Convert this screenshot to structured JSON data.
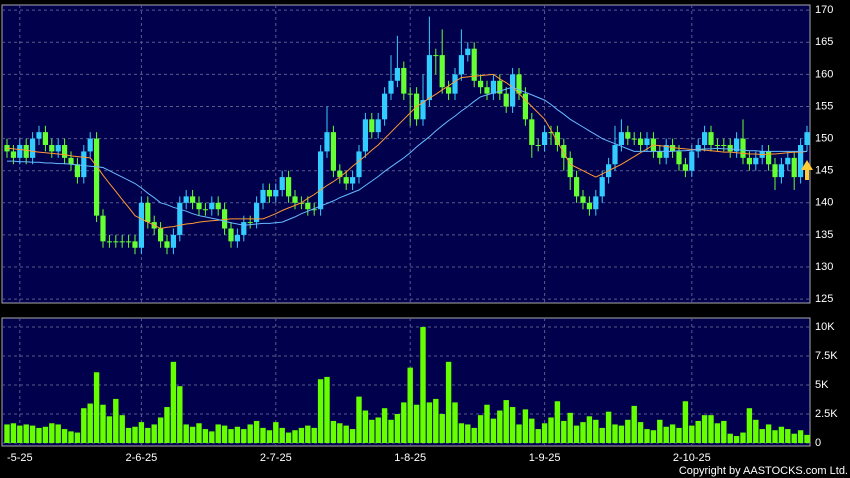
{
  "chart_data": {
    "type": "candlestick",
    "categories": [
      null,
      null,
      "-5-25",
      null,
      null,
      null,
      null,
      null,
      null,
      null,
      null,
      null,
      null,
      null,
      null,
      null,
      null,
      null,
      null,
      null,
      null,
      "2-6-25",
      null,
      null,
      null,
      null,
      null,
      null,
      null,
      null,
      null,
      null,
      null,
      null,
      null,
      null,
      null,
      null,
      null,
      null,
      null,
      null,
      "2-7-25",
      null,
      null,
      null,
      null,
      null,
      null,
      null,
      null,
      null,
      null,
      null,
      null,
      null,
      null,
      null,
      null,
      null,
      null,
      null,
      null,
      "1-8-25",
      null,
      null,
      null,
      null,
      null,
      null,
      null,
      null,
      null,
      null,
      null,
      null,
      null,
      null,
      null,
      null,
      null,
      null,
      null,
      null,
      "1-9-25",
      null,
      null,
      null,
      null,
      null,
      null,
      null,
      null,
      null,
      null,
      null,
      null,
      null,
      null,
      null,
      null,
      null,
      null,
      null,
      null,
      null,
      null,
      "2-10-25",
      null,
      null,
      null,
      null,
      null,
      null,
      null,
      null,
      null,
      null,
      null,
      null,
      null,
      null,
      null,
      null,
      null,
      null
    ],
    "open": [
      149,
      148,
      147,
      149,
      147,
      150,
      151,
      149,
      148,
      149,
      147,
      146,
      144,
      148,
      150,
      138,
      134,
      134,
      134,
      134,
      134,
      133,
      140,
      137,
      136,
      134,
      133,
      135,
      140,
      141,
      140,
      139,
      139,
      140,
      139,
      136,
      134,
      135,
      137,
      137,
      140,
      142,
      141,
      142,
      144,
      141,
      140,
      140,
      139,
      139,
      148,
      151,
      145,
      144,
      143,
      144,
      148,
      153,
      151,
      153,
      157,
      159,
      161,
      157,
      157,
      153,
      156,
      163,
      163,
      158,
      157,
      160,
      163,
      164,
      159,
      158,
      157,
      159,
      157,
      155,
      160,
      157,
      153,
      149,
      149,
      151,
      151,
      149,
      147,
      144,
      141,
      140,
      139,
      141,
      144,
      146,
      149,
      151,
      150,
      150,
      149,
      150,
      148,
      147,
      149,
      148,
      146,
      145,
      148,
      149,
      151,
      149,
      149,
      149,
      148,
      150,
      147,
      146,
      147,
      148,
      146,
      144,
      146,
      147,
      144,
      149
    ],
    "high": [
      150,
      149,
      150,
      150,
      151,
      152,
      152,
      150,
      150,
      150,
      148,
      147,
      149,
      151,
      151,
      139,
      135,
      135,
      135,
      135,
      135,
      141,
      141,
      138,
      137,
      135,
      136,
      141,
      142,
      142,
      141,
      140,
      141,
      141,
      140,
      137,
      136,
      138,
      138,
      141,
      143,
      143,
      143,
      145,
      145,
      142,
      141,
      141,
      140,
      149,
      155,
      152,
      146,
      145,
      145,
      149,
      154,
      154,
      154,
      158,
      163,
      166,
      162,
      158,
      158,
      160,
      169,
      164,
      167,
      159,
      161,
      167,
      165,
      165,
      160,
      159,
      160,
      160,
      158,
      161,
      161,
      158,
      154,
      150,
      152,
      152,
      152,
      150,
      148,
      145,
      142,
      141,
      142,
      145,
      147,
      152,
      153,
      152,
      151,
      151,
      151,
      151,
      149,
      150,
      150,
      149,
      147,
      149,
      150,
      152,
      152,
      150,
      150,
      150,
      151,
      153,
      148,
      148,
      149,
      149,
      147,
      147,
      148,
      148,
      150,
      152
    ],
    "low": [
      147,
      146,
      146,
      146,
      146,
      149,
      148,
      147,
      147,
      146,
      145,
      143,
      143,
      147,
      137,
      133,
      133,
      133,
      133,
      133,
      132,
      132,
      136,
      135,
      133,
      132,
      132,
      134,
      139,
      139,
      138,
      138,
      138,
      138,
      135,
      133,
      133,
      134,
      136,
      136,
      139,
      140,
      140,
      141,
      140,
      139,
      139,
      138,
      138,
      138,
      147,
      144,
      143,
      142,
      142,
      143,
      147,
      150,
      150,
      152,
      156,
      158,
      156,
      152,
      152,
      152,
      155,
      160,
      157,
      156,
      156,
      159,
      162,
      158,
      157,
      156,
      156,
      156,
      154,
      154,
      156,
      152,
      147,
      148,
      148,
      149,
      148,
      145,
      142,
      140,
      139,
      138,
      138,
      140,
      143,
      145,
      148,
      149,
      149,
      148,
      148,
      147,
      146,
      146,
      147,
      145,
      144,
      144,
      147,
      148,
      148,
      148,
      148,
      147,
      147,
      146,
      145,
      145,
      146,
      145,
      142,
      143,
      145,
      142,
      143,
      148
    ],
    "close": [
      148,
      147,
      149,
      147,
      150,
      151,
      149,
      148,
      149,
      147,
      146,
      144,
      148,
      150,
      138,
      134,
      134,
      134,
      134,
      134,
      133,
      140,
      137,
      136,
      134,
      133,
      135,
      140,
      141,
      140,
      139,
      139,
      140,
      139,
      136,
      134,
      135,
      137,
      137,
      140,
      142,
      141,
      142,
      144,
      141,
      140,
      140,
      139,
      139,
      148,
      151,
      145,
      144,
      143,
      144,
      148,
      153,
      151,
      153,
      157,
      159,
      161,
      157,
      157,
      153,
      156,
      163,
      163,
      158,
      157,
      160,
      163,
      164,
      159,
      158,
      157,
      159,
      157,
      155,
      160,
      157,
      153,
      149,
      149,
      151,
      151,
      149,
      147,
      144,
      141,
      140,
      139,
      141,
      144,
      146,
      149,
      151,
      150,
      150,
      149,
      150,
      148,
      147,
      149,
      148,
      146,
      145,
      148,
      149,
      151,
      149,
      149,
      149,
      148,
      150,
      147,
      146,
      147,
      148,
      146,
      144,
      146,
      147,
      144,
      149,
      151
    ],
    "up_color": "#33ccff",
    "down_color": "#66ff33",
    "moving_averages": [
      {
        "color": "#ff9933",
        "values": [
          148.5,
          148.4,
          148.3,
          148.2,
          148.0,
          147.9,
          147.8,
          147.7,
          147.6,
          147.5,
          147.3,
          147.2,
          147.1,
          147.0,
          145.7,
          144.3,
          143.0,
          141.8,
          140.5,
          139.3,
          138.0,
          137.5,
          137.0,
          136.5,
          136.0,
          136.2,
          136.3,
          136.5,
          136.7,
          136.8,
          137.0,
          137.1,
          137.2,
          137.3,
          137.4,
          137.5,
          137.5,
          137.5,
          137.5,
          137.5,
          137.5,
          137.9,
          138.3,
          138.8,
          139.2,
          139.6,
          140.0,
          140.7,
          141.3,
          142.0,
          142.7,
          143.3,
          144.0,
          144.8,
          145.7,
          146.5,
          147.3,
          148.2,
          149.0,
          150.0,
          151.0,
          152.0,
          153.0,
          154.0,
          155.0,
          155.6,
          156.3,
          156.9,
          157.6,
          158.2,
          158.9,
          159.5,
          159.6,
          159.7,
          159.8,
          159.9,
          160.0,
          159.3,
          158.7,
          158.0,
          157.0,
          156.0,
          155.0,
          154.0,
          153.0,
          151.3,
          149.5,
          147.8,
          146.0,
          145.5,
          145.0,
          144.5,
          144.0,
          144.5,
          145.0,
          145.5,
          146.0,
          146.6,
          147.2,
          147.8,
          148.4,
          149.0,
          148.9,
          148.8,
          148.6,
          148.5,
          148.4,
          148.3,
          148.3,
          148.2,
          148.1,
          148.0,
          147.9,
          147.9,
          147.8,
          147.7,
          147.6,
          147.6,
          147.5,
          147.6,
          147.6,
          147.7,
          147.8,
          147.9,
          147.9,
          148.0
        ]
      },
      {
        "color": "#66bbff",
        "values": [
          146.5,
          146.5,
          146.4,
          146.4,
          146.3,
          146.3,
          146.2,
          146.2,
          146.1,
          146.1,
          146.0,
          145.9,
          145.8,
          145.7,
          145.6,
          145.5,
          145.0,
          144.5,
          144.0,
          143.5,
          143.0,
          142.3,
          141.5,
          140.8,
          140.0,
          139.7,
          139.3,
          139.0,
          138.7,
          138.3,
          138.0,
          137.8,
          137.6,
          137.4,
          137.1,
          136.9,
          136.7,
          136.5,
          136.6,
          136.7,
          136.8,
          136.8,
          136.9,
          137.0,
          137.4,
          137.8,
          138.3,
          138.7,
          139.1,
          139.5,
          139.9,
          140.3,
          140.8,
          141.2,
          141.6,
          142.0,
          142.7,
          143.4,
          144.1,
          144.9,
          145.6,
          146.3,
          147.0,
          147.8,
          148.7,
          149.5,
          150.3,
          151.2,
          152.0,
          152.8,
          153.5,
          154.3,
          155.0,
          155.8,
          156.5,
          156.8,
          157.1,
          157.4,
          157.7,
          158.0,
          157.6,
          157.2,
          156.8,
          156.4,
          156.0,
          155.3,
          154.5,
          153.8,
          153.0,
          152.4,
          151.8,
          151.2,
          150.6,
          150.0,
          149.6,
          149.2,
          148.8,
          148.4,
          148.0,
          148.0,
          148.0,
          148.0,
          148.0,
          148.0,
          148.0,
          148.1,
          148.1,
          148.2,
          148.3,
          148.4,
          148.4,
          148.5,
          148.4,
          148.4,
          148.3,
          148.2,
          148.1,
          148.1,
          148.0,
          148.0,
          148.0,
          148.0,
          148.0,
          148.0,
          148.0,
          148.0
        ]
      }
    ],
    "ylim": [
      124.4,
      170.8
    ],
    "yticks": [
      125,
      130,
      135,
      140,
      145,
      150,
      155,
      160,
      165,
      170
    ],
    "grid": true,
    "volume": {
      "color": "#66ff00",
      "values": [
        1600,
        1700,
        1500,
        1600,
        1500,
        1300,
        1400,
        1700,
        1600,
        1200,
        1000,
        900,
        3000,
        3400,
        6100,
        3300,
        2300,
        3800,
        2400,
        1300,
        1400,
        1800,
        1300,
        1600,
        2200,
        3100,
        7000,
        4900,
        1600,
        1400,
        1700,
        1200,
        1000,
        1600,
        1500,
        1200,
        1400,
        1200,
        1600,
        1900,
        1300,
        1100,
        1800,
        1300,
        900,
        1100,
        1300,
        1500,
        1300,
        5500,
        5700,
        1900,
        1700,
        1500,
        1200,
        4000,
        2800,
        2000,
        2200,
        3000,
        2000,
        2500,
        3500,
        6500,
        3300,
        10000,
        3500,
        3800,
        2500,
        7000,
        3500,
        1700,
        1600,
        1300,
        2400,
        3300,
        2100,
        2800,
        3700,
        3100,
        1600,
        2900,
        2100,
        1200,
        1700,
        2200,
        3600,
        1900,
        2600,
        1500,
        1800,
        2300,
        2000,
        1300,
        2700,
        1600,
        1500,
        2000,
        3200,
        1800,
        1200,
        1100,
        2000,
        1400,
        1600,
        1300,
        3600,
        1500,
        1900,
        2400,
        2400,
        1700,
        1900,
        800,
        600,
        900,
        3000,
        2000,
        1200,
        1600,
        1100,
        1400,
        1200,
        800,
        1100,
        700
      ],
      "ylim": [
        -260,
        10780
      ],
      "yticks": [
        0,
        {
          "value": 2500,
          "label": "2.5K"
        },
        {
          "value": 5000,
          "label": "5K"
        },
        {
          "value": 7500,
          "label": "7.5K"
        },
        {
          "value": 10000,
          "label": "10K"
        }
      ]
    }
  },
  "footer": {
    "copyright": "Copyright by AASTOCKS.com Ltd."
  }
}
